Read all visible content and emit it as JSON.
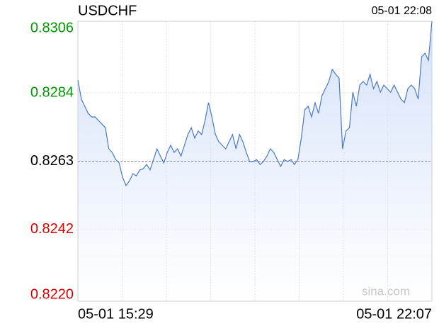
{
  "chart_data": {
    "type": "line",
    "title": "USDCHF",
    "timestamp": "05-01 22:08",
    "watermark": "sina.com",
    "x_labels": [
      "05-01 15:29",
      "05-01 22:07"
    ],
    "ylim": [
      0.822,
      0.8306
    ],
    "yticks": [
      0.8306,
      0.8284,
      0.8263,
      0.8242,
      {
        "value": 0.822,
        "label": "0.8220"
      }
    ],
    "ytick_colors": [
      "#009900",
      "#009900",
      "#000000",
      "#dd0000",
      "#dd0000"
    ],
    "reference_tick": 2,
    "grid": true,
    "series": [
      {
        "name": "USDCHF",
        "color": "#4a78c8",
        "fill": "#dfe9fb",
        "values": [
          0.82879,
          0.82821,
          0.82799,
          0.82777,
          0.82766,
          0.82766,
          0.82755,
          0.82744,
          0.82733,
          0.82668,
          0.82657,
          0.82635,
          0.82625,
          0.82581,
          0.82555,
          0.8257,
          0.82592,
          0.82585,
          0.82603,
          0.82607,
          0.8262,
          0.82603,
          0.82635,
          0.82668,
          0.82646,
          0.82625,
          0.82657,
          0.82679,
          0.82657,
          0.82668,
          0.82646,
          0.82679,
          0.82712,
          0.82733,
          0.82701,
          0.82723,
          0.82712,
          0.82755,
          0.8281,
          0.82766,
          0.82712,
          0.8269,
          0.82679,
          0.82668,
          0.8269,
          0.82712,
          0.82668,
          0.82712,
          0.8269,
          0.82657,
          0.82629,
          0.82629,
          0.82635,
          0.8262,
          0.82629,
          0.82646,
          0.82668,
          0.82657,
          0.82635,
          0.82614,
          0.82635,
          0.82629,
          0.82635,
          0.8262,
          0.82635,
          0.82701,
          0.82788,
          0.82799,
          0.82766,
          0.8281,
          0.82777,
          0.82831,
          0.82853,
          0.82875,
          0.82912,
          0.82897,
          0.82886,
          0.82668,
          0.82723,
          0.82733,
          0.82842,
          0.82799,
          0.82864,
          0.82875,
          0.82864,
          0.82897,
          0.82853,
          0.82875,
          0.82842,
          0.82864,
          0.82853,
          0.82842,
          0.82864,
          0.82842,
          0.82821,
          0.8281,
          0.82853,
          0.82864,
          0.82853,
          0.82821,
          0.82951,
          0.82962,
          0.8294,
          0.8306
        ]
      }
    ]
  }
}
